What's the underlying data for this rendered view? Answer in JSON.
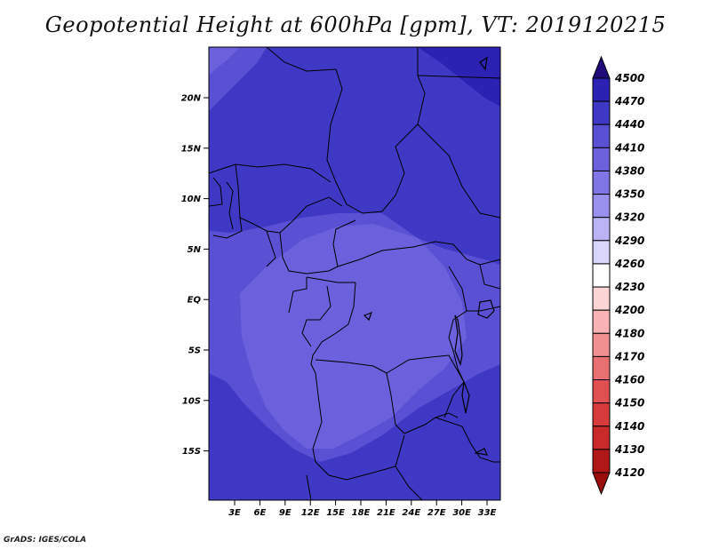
{
  "title": "Geopotential Height at 600hPa [gpm], VT: 2019120215",
  "credit": "GrADS: IGES/COLA",
  "map": {
    "lat_labels": [
      "20N",
      "15N",
      "10N",
      "5N",
      "EQ",
      "5S",
      "10S",
      "15S"
    ],
    "lon_labels": [
      "3E",
      "6E",
      "9E",
      "12E",
      "15E",
      "18E",
      "21E",
      "24E",
      "27E",
      "30E",
      "33E"
    ],
    "colors": {
      "c4470": "#2b22b4",
      "c4440": "#3f38c4",
      "c4410": "#5a50d4",
      "c4380": "#6b61dc"
    }
  },
  "colorbar": {
    "levels": [
      "4500",
      "4470",
      "4440",
      "4410",
      "4380",
      "4350",
      "4320",
      "4290",
      "4260",
      "4230",
      "4200",
      "4180",
      "4170",
      "4160",
      "4150",
      "4140",
      "4130",
      "4120"
    ],
    "colors": [
      "#1f0b7a",
      "#2b22b4",
      "#3f38c4",
      "#5a50d4",
      "#6b61dc",
      "#7f75e4",
      "#9a90ee",
      "#b9b3f4",
      "#d8d6fa",
      "#ffffff",
      "#fcd6d6",
      "#f8b4b4",
      "#f09090",
      "#e87070",
      "#e05050",
      "#d63a3a",
      "#c82a2a",
      "#b01818",
      "#980c0c"
    ]
  }
}
